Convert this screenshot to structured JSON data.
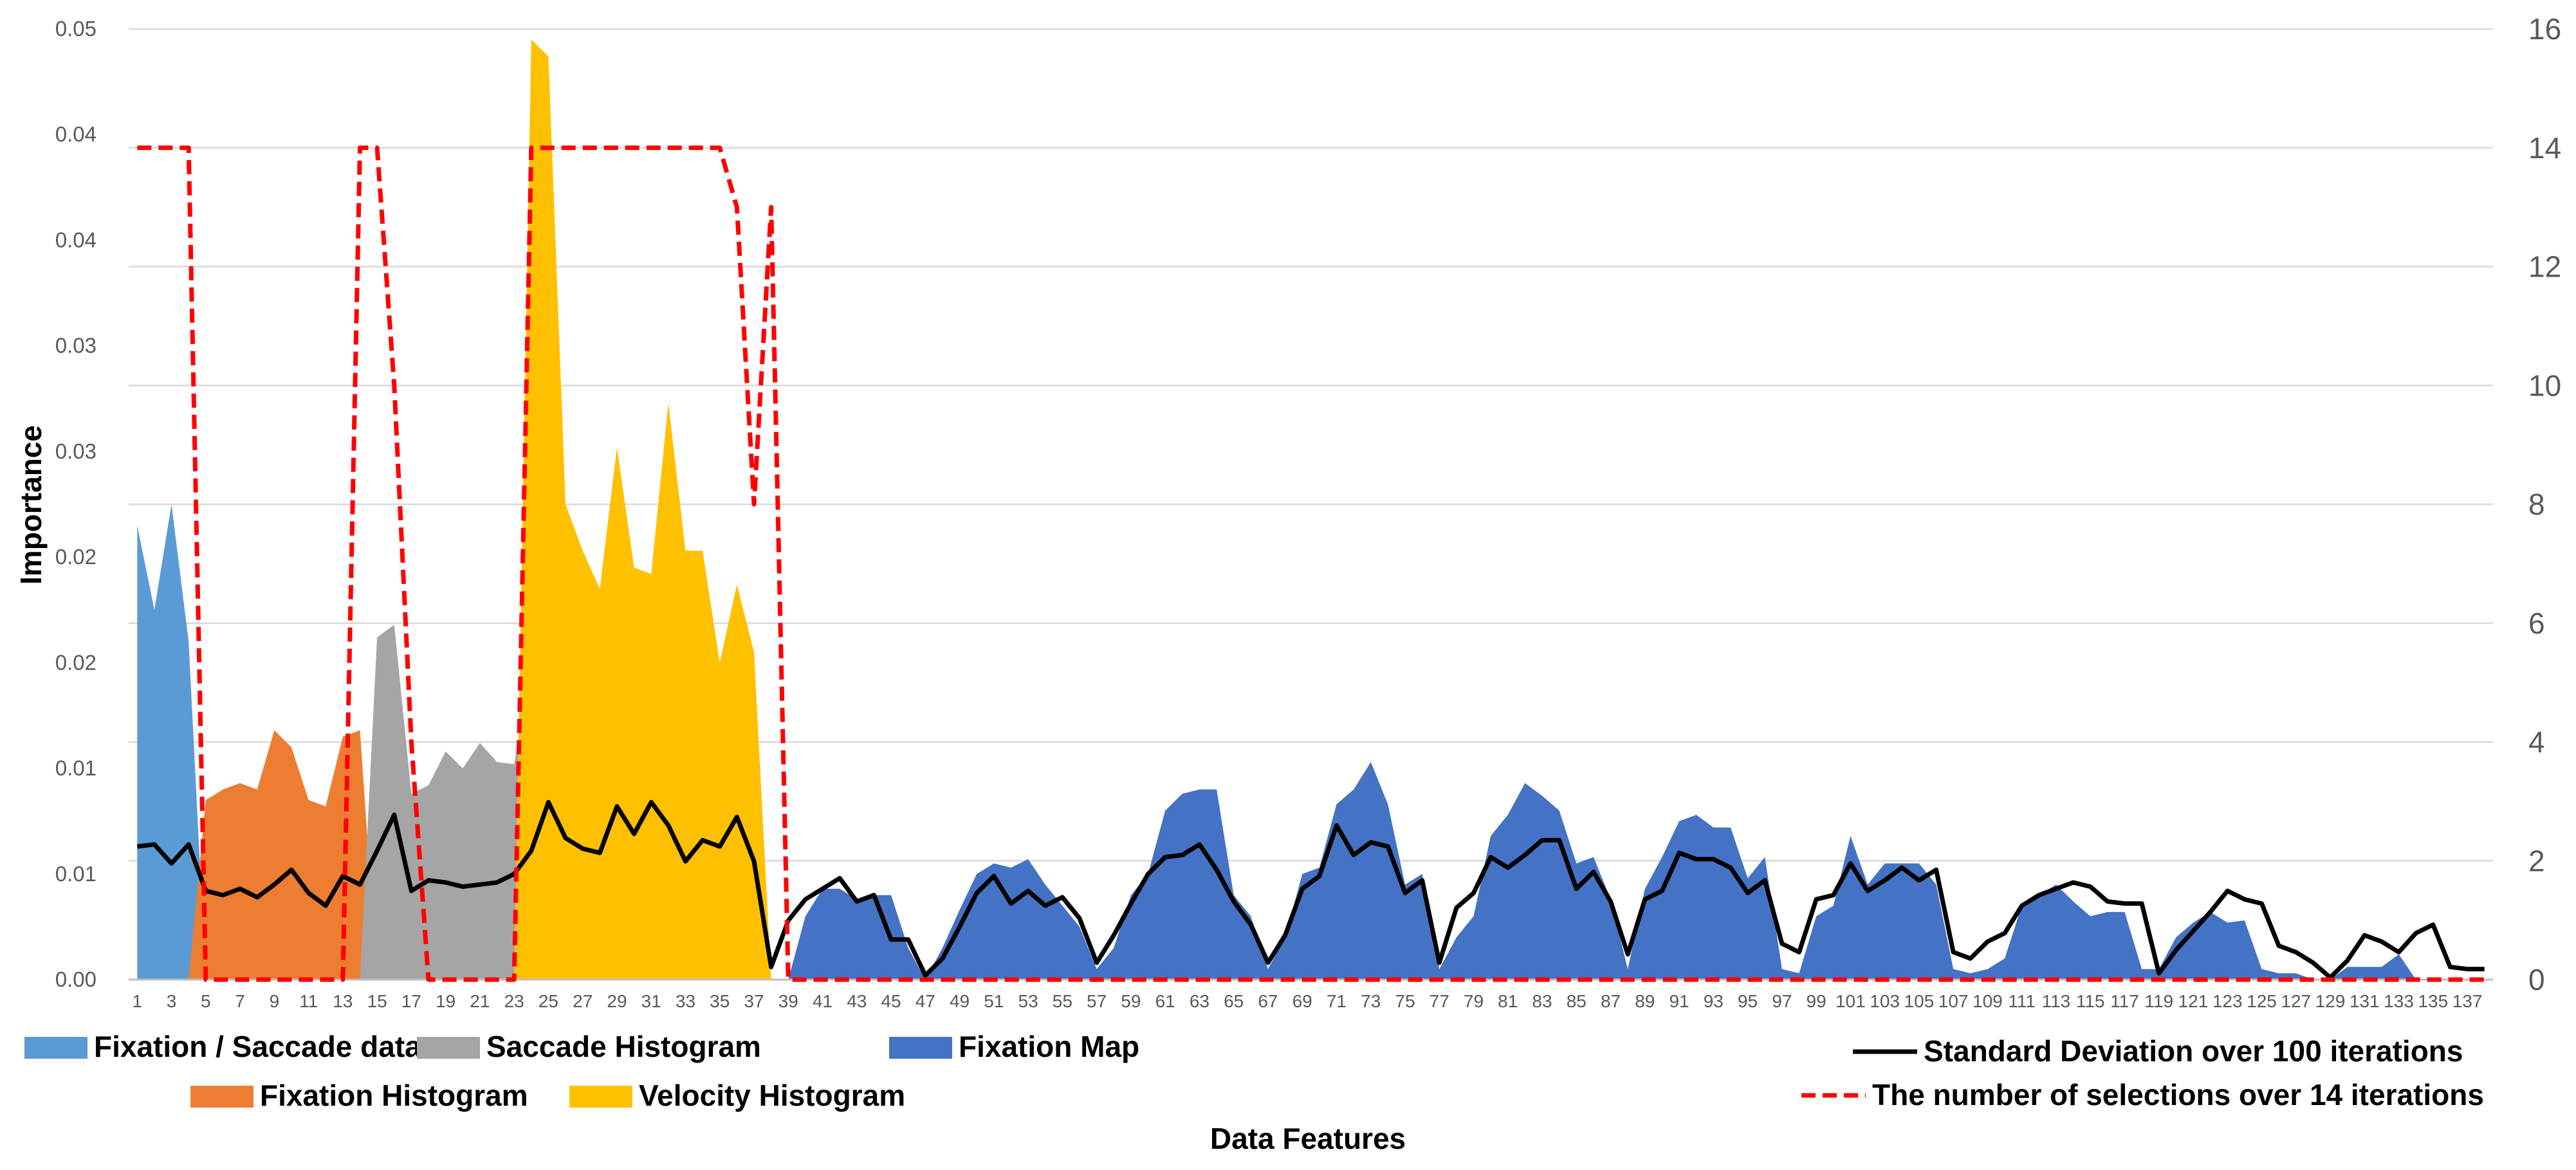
{
  "chart_data": {
    "type": "area",
    "title": "",
    "xlabel": "Data Features",
    "ylabel": "Importance",
    "ylabel_right": "",
    "x": [
      1,
      2,
      3,
      4,
      5,
      6,
      7,
      8,
      9,
      10,
      11,
      12,
      13,
      14,
      15,
      16,
      17,
      18,
      19,
      20,
      21,
      22,
      23,
      24,
      25,
      26,
      27,
      28,
      29,
      30,
      31,
      32,
      33,
      34,
      35,
      36,
      37,
      38,
      39,
      40,
      41,
      42,
      43,
      44,
      45,
      46,
      47,
      48,
      49,
      50,
      51,
      52,
      53,
      54,
      55,
      56,
      57,
      58,
      59,
      60,
      61,
      62,
      63,
      64,
      65,
      66,
      67,
      68,
      69,
      70,
      71,
      72,
      73,
      74,
      75,
      76,
      77,
      78,
      79,
      80,
      81,
      82,
      83,
      84,
      85,
      86,
      87,
      88,
      89,
      90,
      91,
      92,
      93,
      94,
      95,
      96,
      97,
      98,
      99,
      100,
      101,
      102,
      103,
      104,
      105,
      106,
      107,
      108,
      109,
      110,
      111,
      112,
      113,
      114,
      115,
      116,
      117,
      118,
      119,
      120,
      121,
      122,
      123,
      124,
      125,
      126,
      127,
      128,
      129,
      130,
      131,
      132,
      133,
      134,
      135,
      136,
      137,
      138
    ],
    "x_tick_labels": [
      "1",
      "3",
      "5",
      "7",
      "9",
      "11",
      "13",
      "15",
      "17",
      "19",
      "21",
      "23",
      "25",
      "27",
      "29",
      "31",
      "33",
      "35",
      "37",
      "39",
      "41",
      "43",
      "45",
      "47",
      "49",
      "51",
      "53",
      "55",
      "57",
      "59",
      "61",
      "63",
      "65",
      "67",
      "69",
      "71",
      "73",
      "75",
      "77",
      "79",
      "81",
      "83",
      "85",
      "87",
      "89",
      "91",
      "93",
      "95",
      "97",
      "99",
      "101",
      "103",
      "105",
      "107",
      "109",
      "111",
      "113",
      "115",
      "117",
      "119",
      "121",
      "123",
      "125",
      "127",
      "129",
      "131",
      "133",
      "135",
      "137"
    ],
    "y_left_ticks": [
      {
        "value": 0,
        "label": "0.00"
      },
      {
        "value": 0.005,
        "label": "0.01"
      },
      {
        "value": 0.01,
        "label": "0.01"
      },
      {
        "value": 0.015,
        "label": "0.02"
      },
      {
        "value": 0.02,
        "label": "0.02"
      },
      {
        "value": 0.025,
        "label": "0.03"
      },
      {
        "value": 0.03,
        "label": "0.03"
      },
      {
        "value": 0.035,
        "label": "0.04"
      },
      {
        "value": 0.04,
        "label": "0.04"
      },
      {
        "value": 0.045,
        "label": "0.05"
      }
    ],
    "y_right_ticks": [
      "0",
      "2",
      "4",
      "6",
      "8",
      "10",
      "12",
      "14",
      "16"
    ],
    "ylim": [
      0,
      0.045
    ],
    "ylim_right": [
      0,
      16
    ],
    "grid": true,
    "legend_position": "bottom",
    "area_series": [
      {
        "name": "Fixation / Saccade data",
        "color": "#5B9BD5",
        "x_start": 1,
        "values": [
          0.0215,
          0.0175,
          0.0225,
          0.016,
          0.0
        ]
      },
      {
        "name": "Fixation Histogram",
        "color": "#ED7D31",
        "x_start": 4,
        "values": [
          0.0,
          0.0085,
          0.009,
          0.0093,
          0.009,
          0.0118,
          0.011,
          0.0085,
          0.0082,
          0.0115,
          0.0118,
          0.0
        ]
      },
      {
        "name": "Saccade Histogram",
        "color": "#A5A5A5",
        "x_start": 14,
        "values": [
          0.0,
          0.0162,
          0.0168,
          0.0088,
          0.0092,
          0.0108,
          0.01,
          0.0112,
          0.0103,
          0.0102,
          0.015,
          0.0
        ]
      },
      {
        "name": "Velocity Histogram",
        "color": "#FFC000",
        "x_start": 23,
        "values": [
          0.0,
          0.0445,
          0.0437,
          0.0225,
          0.0203,
          0.0185,
          0.0252,
          0.0195,
          0.0192,
          0.0273,
          0.0203,
          0.0203,
          0.015,
          0.0187,
          0.0155,
          0.0
        ]
      },
      {
        "name": "Fixation Map",
        "color": "#4472C4",
        "x_start": 38,
        "values": [
          0.0,
          0.0,
          0.003,
          0.0043,
          0.0043,
          0.0038,
          0.004,
          0.004,
          0.0015,
          0.0,
          0.0015,
          0.0033,
          0.005,
          0.0055,
          0.0053,
          0.0057,
          0.0045,
          0.0035,
          0.0025,
          0.0005,
          0.0015,
          0.004,
          0.005,
          0.008,
          0.0088,
          0.009,
          0.009,
          0.004,
          0.003,
          0.0005,
          0.002,
          0.005,
          0.0053,
          0.0083,
          0.009,
          0.0103,
          0.0083,
          0.0045,
          0.005,
          0.0005,
          0.002,
          0.003,
          0.0068,
          0.0078,
          0.0093,
          0.0087,
          0.008,
          0.0055,
          0.0058,
          0.0038,
          0.0005,
          0.0043,
          0.0058,
          0.0075,
          0.0078,
          0.0072,
          0.0072,
          0.0048,
          0.0058,
          0.0005,
          0.0003,
          0.003,
          0.0035,
          0.0068,
          0.0045,
          0.0055,
          0.0055,
          0.0055,
          0.0045,
          0.0005,
          0.0003,
          0.0005,
          0.001,
          0.0035,
          0.004,
          0.0045,
          0.0037,
          0.003,
          0.0032,
          0.0032,
          0.0005,
          0.0005,
          0.002,
          0.0027,
          0.0032,
          0.0027,
          0.0028,
          0.0005,
          0.0003,
          0.0003,
          0.0,
          0.0,
          0.0006,
          0.0006,
          0.0006,
          0.0012,
          0.0,
          0.0,
          0.0
        ]
      }
    ],
    "std_series": {
      "name": "Standard Deviation over 100 iterations",
      "color": "#000000",
      "values": [
        0.0063,
        0.0064,
        0.0055,
        0.0064,
        0.0042,
        0.004,
        0.0043,
        0.0039,
        0.0045,
        0.0052,
        0.0041,
        0.0035,
        0.0049,
        0.0045,
        0.0061,
        0.0078,
        0.0042,
        0.0047,
        0.0046,
        0.0044,
        0.0045,
        0.0046,
        0.005,
        0.0061,
        0.0084,
        0.0067,
        0.0062,
        0.006,
        0.0082,
        0.0069,
        0.0084,
        0.0073,
        0.0056,
        0.0066,
        0.0063,
        0.0077,
        0.0056,
        0.0006,
        0.0028,
        0.0038,
        0.0043,
        0.0048,
        0.0037,
        0.004,
        0.0019,
        0.0019,
        0.0002,
        0.001,
        0.0025,
        0.0041,
        0.0049,
        0.0036,
        0.0042,
        0.0035,
        0.0039,
        0.0029,
        0.0008,
        0.0021,
        0.0036,
        0.005,
        0.0058,
        0.0059,
        0.0064,
        0.0052,
        0.0037,
        0.0026,
        0.0008,
        0.0021,
        0.0043,
        0.0049,
        0.0073,
        0.0059,
        0.0065,
        0.0063,
        0.0041,
        0.0047,
        0.0008,
        0.0034,
        0.0041,
        0.0058,
        0.0053,
        0.0059,
        0.0066,
        0.0066,
        0.0043,
        0.0051,
        0.0037,
        0.0012,
        0.0038,
        0.0042,
        0.006,
        0.0057,
        0.0057,
        0.0053,
        0.0041,
        0.0047,
        0.0017,
        0.0013,
        0.0038,
        0.004,
        0.0055,
        0.0042,
        0.0047,
        0.0053,
        0.0047,
        0.0052,
        0.0013,
        0.001,
        0.0018,
        0.0022,
        0.0035,
        0.004,
        0.0043,
        0.0046,
        0.0044,
        0.0037,
        0.0036,
        0.0036,
        0.0003,
        0.0014,
        0.0023,
        0.0032,
        0.0042,
        0.0038,
        0.0036,
        0.0016,
        0.0013,
        0.0008,
        0.0001,
        0.0009,
        0.0021,
        0.0018,
        0.0013,
        0.0022,
        0.0026,
        0.0006,
        0.0005,
        0.0005
      ]
    },
    "selection_series": {
      "name": "The number of selections over 14 iterations",
      "color": "#FF0000",
      "axis": "right",
      "values": [
        14,
        14,
        14,
        14,
        0,
        0,
        0,
        0,
        0,
        0,
        0,
        0,
        0,
        14,
        14,
        10,
        4,
        0,
        0,
        0,
        0,
        0,
        0,
        14,
        14,
        14,
        14,
        14,
        14,
        14,
        14,
        14,
        14,
        14,
        14,
        13,
        8,
        13,
        0,
        0,
        0,
        0,
        0,
        0,
        0,
        0,
        0,
        0,
        0,
        0,
        0,
        0,
        0,
        0,
        0,
        0,
        0,
        0,
        0,
        0,
        0,
        0,
        0,
        0,
        0,
        0,
        0,
        0,
        0,
        0,
        0,
        0,
        0,
        0,
        0,
        0,
        0,
        0,
        0,
        0,
        0,
        0,
        0,
        0,
        0,
        0,
        0,
        0,
        0,
        0,
        0,
        0,
        0,
        0,
        0,
        0,
        0,
        0,
        0,
        0,
        0,
        0,
        0,
        0,
        0,
        0,
        0,
        0,
        0,
        0,
        0,
        0,
        0,
        0,
        0,
        0,
        0,
        0,
        0,
        0,
        0,
        0,
        0,
        0,
        0,
        0,
        0,
        0,
        0,
        0,
        0,
        0,
        0,
        0,
        0,
        0,
        0,
        0
      ]
    }
  }
}
